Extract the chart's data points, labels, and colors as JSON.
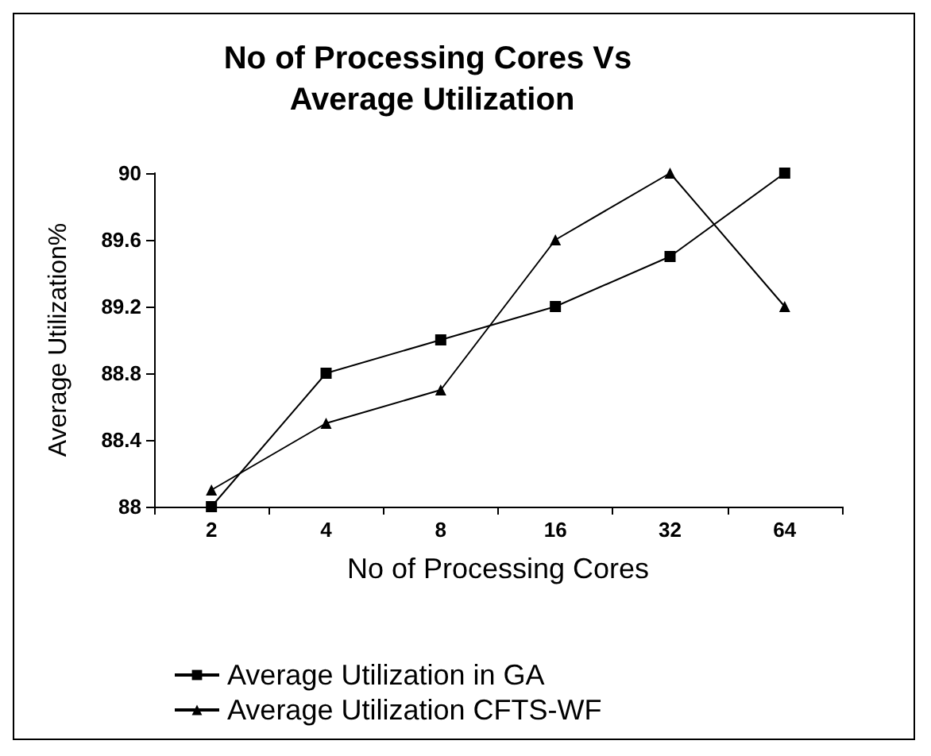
{
  "chart_data": {
    "type": "line",
    "title": "No of Processing Cores Vs Average Utilization",
    "xlabel": "No of Processing Cores",
    "ylabel": "Average Utilization%",
    "categories": [
      "2",
      "4",
      "8",
      "16",
      "32",
      "64"
    ],
    "series": [
      {
        "name": "Average Utilization in GA",
        "color": "#000000",
        "marker": "square",
        "values": [
          88,
          88.8,
          89,
          89.2,
          89.5,
          90
        ]
      },
      {
        "name": "Average Utilization CFTS-WF",
        "color": "#000000",
        "marker": "triangle",
        "values": [
          88.1,
          88.5,
          88.7,
          89.6,
          90,
          89.2
        ]
      }
    ],
    "ylim": [
      88,
      90
    ],
    "yticks": [
      88,
      88.4,
      88.8,
      89.2,
      89.6,
      90
    ],
    "grid": false,
    "legend": "bottom",
    "line_style": "solid"
  }
}
